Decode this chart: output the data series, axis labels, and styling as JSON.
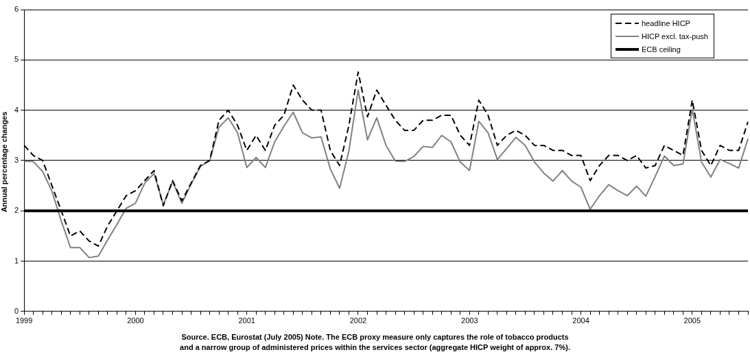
{
  "chart_data": {
    "type": "line",
    "ylabel": "Annual percentage changes",
    "categories": [
      "1999",
      null,
      null,
      null,
      null,
      null,
      null,
      null,
      null,
      null,
      null,
      null,
      "2000",
      null,
      null,
      null,
      null,
      null,
      null,
      null,
      null,
      null,
      null,
      null,
      "2001",
      null,
      null,
      null,
      null,
      null,
      null,
      null,
      null,
      null,
      null,
      null,
      "2002",
      null,
      null,
      null,
      null,
      null,
      null,
      null,
      null,
      null,
      null,
      null,
      "2003",
      null,
      null,
      null,
      null,
      null,
      null,
      null,
      null,
      null,
      null,
      null,
      "2004",
      null,
      null,
      null,
      null,
      null,
      null,
      null,
      null,
      null,
      null,
      null,
      "2005",
      null,
      null,
      null,
      null,
      null,
      null
    ],
    "series": [
      {
        "name": "headline HICP",
        "color": "#000000",
        "line_style": "dashed",
        "values": [
          3.3,
          3.1,
          3.0,
          2.5,
          2.0,
          1.5,
          1.6,
          1.4,
          1.3,
          1.7,
          2.0,
          2.3,
          2.4,
          2.6,
          2.8,
          2.1,
          2.6,
          2.2,
          2.55,
          2.9,
          3.0,
          3.8,
          4.0,
          3.7,
          3.2,
          3.5,
          3.2,
          3.7,
          3.9,
          4.5,
          4.2,
          4.0,
          4.0,
          3.2,
          2.9,
          3.7,
          4.76,
          3.87,
          4.4,
          4.1,
          3.8,
          3.6,
          3.6,
          3.8,
          3.8,
          3.9,
          3.9,
          3.5,
          3.3,
          4.2,
          3.9,
          3.3,
          3.5,
          3.6,
          3.5,
          3.3,
          3.3,
          3.2,
          3.2,
          3.1,
          3.1,
          2.6,
          2.9,
          3.1,
          3.1,
          3.0,
          3.1,
          2.85,
          2.9,
          3.3,
          3.2,
          3.1,
          4.2,
          3.2,
          2.9,
          3.3,
          3.2,
          3.2,
          3.77
        ]
      },
      {
        "name": "HICP excl. tax-push",
        "color": "#808080",
        "line_style": "solid",
        "values": [
          2.98,
          2.98,
          2.78,
          2.39,
          1.8,
          1.27,
          1.27,
          1.07,
          1.1,
          1.42,
          1.73,
          2.05,
          2.15,
          2.55,
          2.74,
          2.12,
          2.58,
          2.15,
          2.53,
          2.88,
          3.0,
          3.66,
          3.85,
          3.55,
          2.86,
          3.06,
          2.86,
          3.37,
          3.68,
          3.96,
          3.55,
          3.45,
          3.47,
          2.83,
          2.45,
          3.19,
          4.4,
          3.41,
          3.85,
          3.3,
          2.99,
          2.98,
          3.08,
          3.28,
          3.26,
          3.5,
          3.37,
          2.97,
          2.8,
          3.78,
          3.55,
          3.02,
          3.24,
          3.46,
          3.3,
          2.97,
          2.75,
          2.59,
          2.8,
          2.59,
          2.47,
          2.03,
          2.3,
          2.52,
          2.4,
          2.3,
          2.49,
          2.29,
          2.68,
          3.09,
          2.9,
          2.93,
          4.02,
          2.97,
          2.67,
          3.02,
          2.94,
          2.85,
          3.43
        ]
      }
    ],
    "ref_lines": [
      {
        "axis": "y",
        "value": 2,
        "label": "ECB ceiling",
        "color": "#000000"
      }
    ],
    "ylim": [
      0,
      6
    ],
    "yticks": [
      0,
      1,
      2,
      3,
      4,
      5,
      6
    ],
    "grid": "y",
    "legend": "top right",
    "marker": "none",
    "annotations": [
      "Source. ECB, Eurostat (July 2005) Note. The ECB proxy measure only captures the role of tobacco products",
      "and a narrow group of administered prices within the services sector (aggregate HICP weight of approx. 7%)."
    ]
  }
}
